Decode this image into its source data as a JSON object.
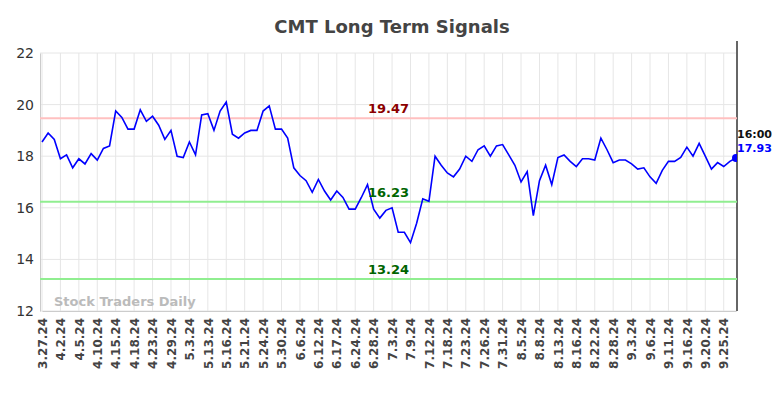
{
  "chart_data": {
    "type": "line",
    "title": "CMT Long Term Signals",
    "categories": [
      "3.27.24",
      null,
      null,
      "4.2.24",
      null,
      null,
      "4.5.24",
      null,
      null,
      "4.10.24",
      null,
      null,
      "4.15.24",
      null,
      null,
      "4.18.24",
      null,
      null,
      "4.23.24",
      null,
      null,
      "4.29.24",
      null,
      null,
      "5.3.24",
      null,
      null,
      "5.13.24",
      null,
      null,
      "5.16.24",
      null,
      null,
      "5.21.24",
      null,
      null,
      "5.24.24",
      null,
      null,
      "5.30.24",
      null,
      null,
      "6.6.24",
      null,
      null,
      "6.12.24",
      null,
      null,
      "6.17.24",
      null,
      null,
      "6.24.24",
      null,
      null,
      "6.28.24",
      null,
      null,
      "7.3.24",
      null,
      null,
      "7.9.24",
      null,
      null,
      "7.12.24",
      null,
      null,
      "7.18.24",
      null,
      null,
      "7.23.24",
      null,
      null,
      "7.26.24",
      null,
      null,
      "7.31.24",
      null,
      null,
      "8.5.24",
      null,
      null,
      "8.8.24",
      null,
      null,
      "8.13.24",
      null,
      null,
      "8.16.24",
      null,
      null,
      "8.22.24",
      null,
      null,
      "8.28.24",
      null,
      null,
      "9.3.24",
      null,
      null,
      "9.6.24",
      null,
      null,
      "9.11.24",
      null,
      null,
      "9.16.24",
      null,
      null,
      "9.20.24",
      null,
      null,
      "9.25.24",
      null,
      null
    ],
    "values": [
      18.55,
      18.9,
      18.65,
      17.9,
      18.05,
      17.55,
      17.9,
      17.7,
      18.1,
      17.85,
      18.3,
      18.4,
      19.75,
      19.5,
      19.05,
      19.05,
      19.8,
      19.35,
      19.55,
      19.2,
      18.65,
      19.0,
      18.0,
      17.95,
      18.55,
      18.05,
      19.6,
      19.65,
      19.0,
      19.75,
      20.1,
      18.85,
      18.7,
      18.9,
      19.0,
      19.0,
      19.75,
      19.95,
      19.05,
      19.05,
      18.7,
      17.55,
      17.25,
      17.05,
      16.6,
      17.1,
      16.65,
      16.3,
      16.65,
      16.4,
      15.95,
      15.95,
      16.4,
      16.9,
      15.95,
      15.6,
      15.9,
      16.0,
      15.05,
      15.05,
      14.65,
      15.4,
      16.35,
      16.25,
      18.0,
      17.65,
      17.35,
      17.2,
      17.5,
      18.0,
      17.8,
      18.25,
      18.4,
      18.0,
      18.4,
      18.45,
      18.05,
      17.65,
      17.0,
      17.4,
      15.7,
      17.05,
      17.65,
      16.9,
      17.95,
      18.05,
      17.8,
      17.6,
      17.9,
      17.9,
      17.85,
      18.7,
      18.25,
      17.75,
      17.85,
      17.85,
      17.7,
      17.5,
      17.55,
      17.2,
      16.95,
      17.45,
      17.8,
      17.8,
      17.95,
      18.35,
      18.0,
      18.5,
      18.0,
      17.5,
      17.75,
      17.6,
      17.8,
      17.93
    ],
    "color": "#0000ff",
    "ylim": [
      12,
      22
    ],
    "yticks": [
      12,
      14,
      16,
      18,
      20,
      22
    ],
    "grid": true,
    "levels": [
      {
        "value": 19.47,
        "color": "#ffc0c0",
        "label_color": "#8b0000"
      },
      {
        "value": 16.23,
        "color": "#90ee90",
        "label_color": "#006400"
      },
      {
        "value": 13.24,
        "color": "#90ee90",
        "label_color": "#006400"
      }
    ],
    "annotations": [
      {
        "text": "16:00"
      },
      {
        "text": "Stock Traders Daily"
      }
    ]
  }
}
